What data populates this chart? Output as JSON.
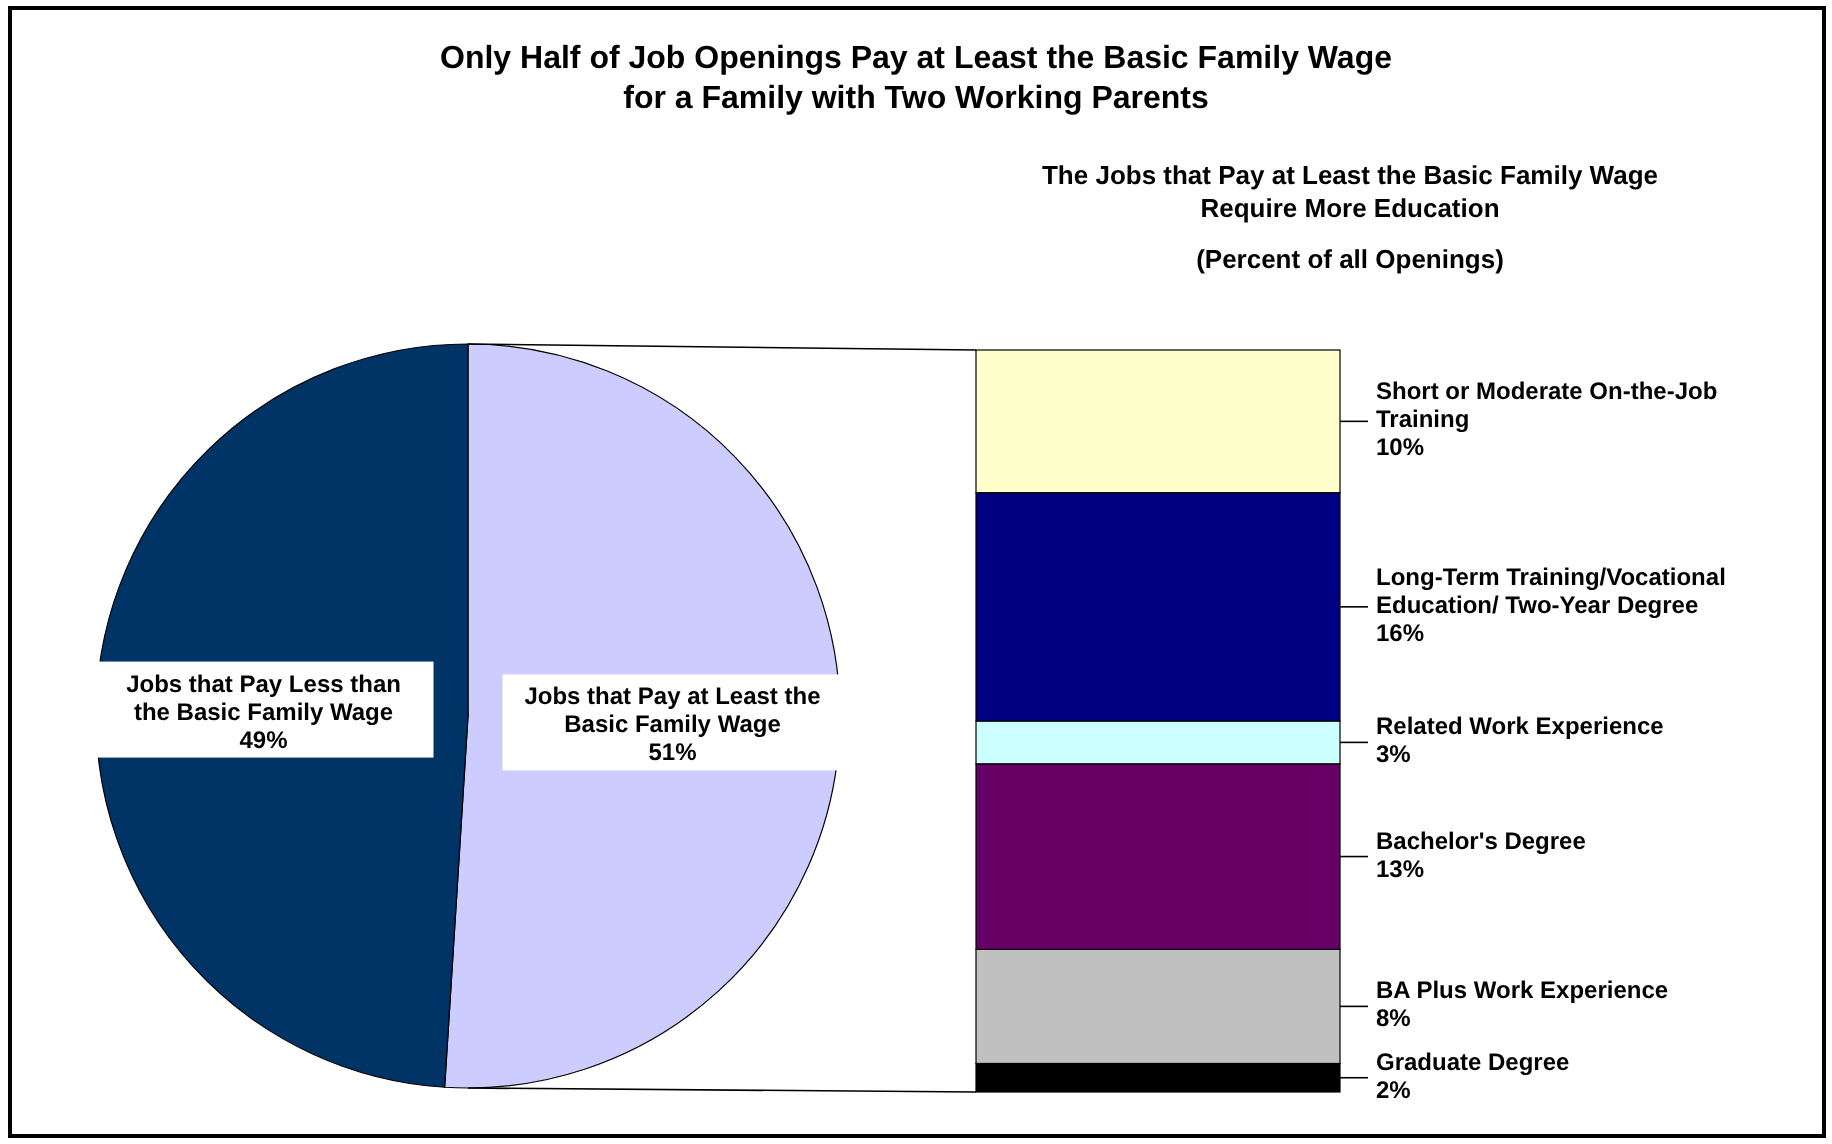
{
  "chart_data": [
    {
      "type": "pie",
      "title": "Only Half of Job Openings Pay at Least the Basic Family Wage for a Family with Two Working Parents",
      "categories": [
        "Jobs that Pay at Least the Basic Family Wage",
        "Jobs that Pay Less than the Basic Family Wage"
      ],
      "values": [
        51,
        49
      ],
      "colors": [
        "#ccccff",
        "#003366"
      ],
      "value_labels": [
        "51%",
        "49%"
      ]
    },
    {
      "type": "bar",
      "stacked": true,
      "legend": "right",
      "title": "The Jobs that Pay at Least the Basic Family Wage Require More Education",
      "subtitle": "(Percent of all Openings)",
      "categories": [
        null
      ],
      "series": [
        {
          "name": "Graduate Degree",
          "color": "#000000",
          "values": [
            2
          ],
          "value_labels": [
            "2%"
          ]
        },
        {
          "name": "BA Plus Work Experience",
          "color": "#c0c0c0",
          "values": [
            8
          ],
          "value_labels": [
            "8%"
          ]
        },
        {
          "name": "Bachelor's Degree",
          "color": "#660066",
          "values": [
            13
          ],
          "value_labels": [
            "13%"
          ]
        },
        {
          "name": "Related Work Experience",
          "color": "#ccffff",
          "values": [
            3
          ],
          "value_labels": [
            "3%"
          ]
        },
        {
          "name": "Long-Term Training/Vocational Education/ Two-Year Degree",
          "color": "#000080",
          "values": [
            16
          ],
          "value_labels": [
            "16%"
          ]
        },
        {
          "name": "Short or Moderate On-the-Job Training",
          "color": "#ffffcc",
          "values": [
            10
          ],
          "value_labels": [
            "10%"
          ]
        }
      ]
    }
  ]
}
